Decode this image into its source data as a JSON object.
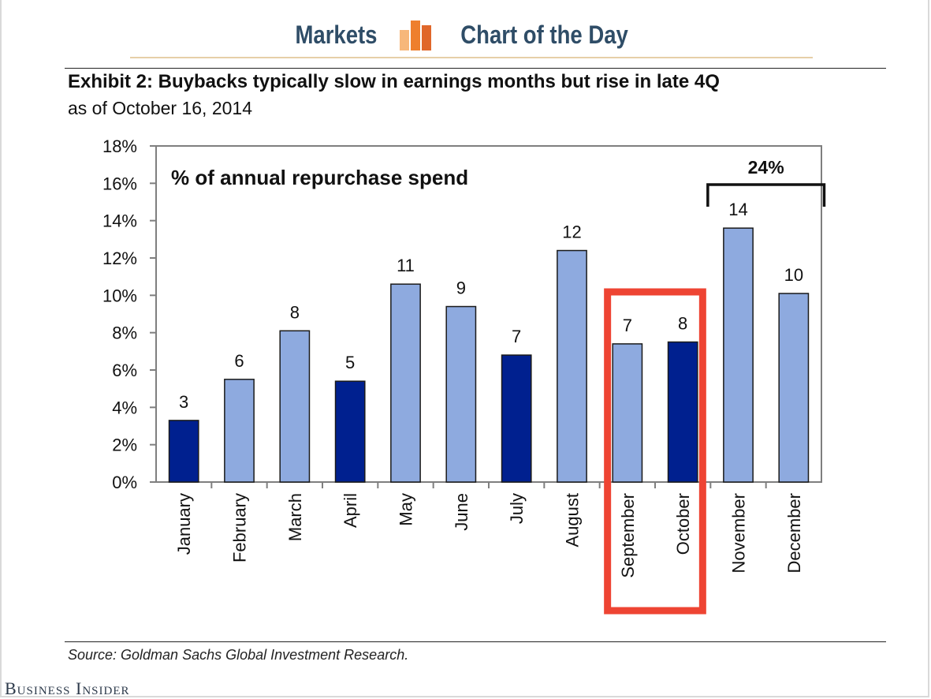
{
  "banner": {
    "left_label": "Markets",
    "right_label": "Chart of the Day",
    "logo_icon": "bar-chart-logo-icon",
    "logo_colors": [
      "#f7b77a",
      "#ee7f2d",
      "#e0672a"
    ]
  },
  "exhibit": {
    "title": "Exhibit 2: Buybacks typically slow in earnings months but rise in late 4Q",
    "subtitle": "as of October 16, 2014"
  },
  "chart_data": {
    "type": "bar",
    "title": "% of annual repurchase spend",
    "categories": [
      "January",
      "February",
      "March",
      "April",
      "May",
      "June",
      "July",
      "August",
      "September",
      "October",
      "November",
      "December"
    ],
    "values": [
      3.3,
      5.5,
      8.1,
      5.4,
      10.6,
      9.4,
      6.8,
      12.4,
      7.4,
      7.5,
      13.6,
      10.1
    ],
    "data_labels": [
      "3",
      "6",
      "8",
      "5",
      "11",
      "9",
      "7",
      "12",
      "7",
      "8",
      "14",
      "10"
    ],
    "earnings_months": [
      true,
      false,
      false,
      true,
      false,
      false,
      true,
      false,
      false,
      true,
      false,
      false
    ],
    "ylim": [
      0,
      18
    ],
    "y_ticks": [
      "0%",
      "2%",
      "4%",
      "6%",
      "8%",
      "10%",
      "12%",
      "14%",
      "16%",
      "18%"
    ],
    "grid": false,
    "xlabel": "",
    "ylabel": "",
    "bracket": {
      "label": "24%",
      "from": "November",
      "to": "December"
    },
    "highlight": {
      "from": "September",
      "to": "October",
      "color": "#ee4433"
    },
    "colors": {
      "dark_bar": "#00208f",
      "light_bar": "#8eaadf",
      "bar_edge": "#1a1a1a"
    }
  },
  "footer": {
    "source": "Source: Goldman Sachs Global Investment Research.",
    "brand": "Business Insider"
  }
}
